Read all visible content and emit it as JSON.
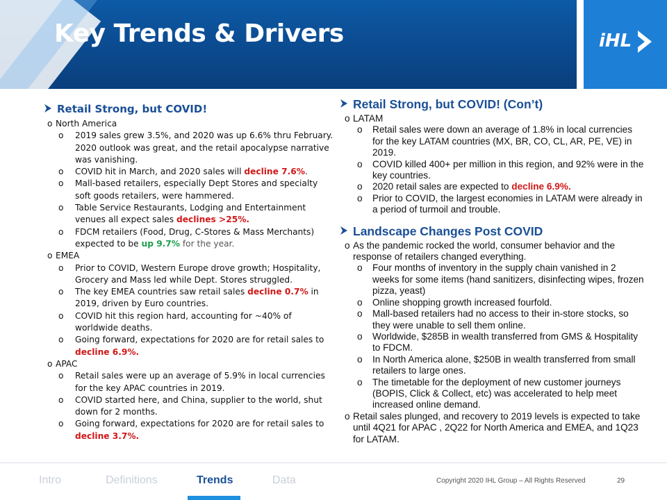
{
  "header": {
    "title": "Key Trends & Drivers",
    "logo_text": "iHL",
    "bg_color": "#0b4a8f",
    "logo_color": "#1e7fd6"
  },
  "left": {
    "heading": "Retail Strong, but COVID!",
    "sections": [
      {
        "region": "North America",
        "items": [
          [
            {
              "t": "2019 sales grew 3.5%, and 2020 was up 6.6% thru February. 2020 outlook was great, and the retail apocalypse narrative was vanishing."
            }
          ],
          [
            {
              "t": "COVID hit in March, and 2020 sales will "
            },
            {
              "t": "decline 7.6%",
              "s": "red"
            },
            {
              "t": "."
            }
          ],
          [
            {
              "t": "Mall-based retailers, especially Dept Stores and specialty soft goods retailers, were hammered."
            }
          ],
          [
            {
              "t": "Table Service Restaurants, Lodging and Entertainment venues all expect sales "
            },
            {
              "t": "declines >25%.",
              "s": "red"
            }
          ],
          [
            {
              "t": "FDCM retailers (Food, Drug, C-Stores & Mass Merchants) expected to be "
            },
            {
              "t": "up 9.7%",
              "s": "green"
            },
            {
              "t": " for the year.",
              "s": "grey"
            }
          ]
        ]
      },
      {
        "region": "EMEA",
        "items": [
          [
            {
              "t": "Prior to COVID, Western Europe drove growth; Hospitality, Grocery and Mass led while Dept. Stores struggled."
            }
          ],
          [
            {
              "t": "The key EMEA countries saw retail sales "
            },
            {
              "t": "decline 0.7%",
              "s": "red"
            },
            {
              "t": " in 2019, driven by Euro countries."
            }
          ],
          [
            {
              "t": "COVID hit this region hard, accounting for ~40% of worldwide deaths."
            }
          ],
          [
            {
              "t": "Going forward, expectations for 2020 are for retail sales to "
            },
            {
              "t": "decline 6.9%.",
              "s": "red"
            }
          ]
        ]
      },
      {
        "region": "APAC",
        "items": [
          [
            {
              "t": "Retail sales were up an average of 5.9% in local currencies for the key APAC countries in 2019."
            }
          ],
          [
            {
              "t": "COVID started here, and China, supplier to the world,  shut down for 2 months."
            }
          ],
          [
            {
              "t": "Going forward, expectations for 2020 are for retail sales to "
            },
            {
              "t": "decline 3.7%.",
              "s": "red"
            }
          ]
        ]
      }
    ]
  },
  "right": {
    "heading1": "Retail Strong, but COVID!  (Con’t)",
    "latam": {
      "region": "LATAM",
      "items": [
        [
          {
            "t": "Retail sales were down an average of 1.8% in local currencies  for the key LATAM countries (MX, BR, CO, CL, AR, PE, VE) in 2019."
          }
        ],
        [
          {
            "t": "COVID killed 400+ per million in this region, and 92% were in the key countries."
          }
        ],
        [
          {
            "t": "2020 retail sales are expected to "
          },
          {
            "t": "decline 6.9%.",
            "s": "red"
          }
        ],
        [
          {
            "t": "Prior to COVID, the largest economies in LATAM  were already in a period of turmoil and trouble."
          }
        ]
      ]
    },
    "heading2": "Landscape Changes Post COVID",
    "pandemic": {
      "intro": "As the pandemic rocked the world, consumer behavior and the response of retailers changed everything.",
      "items": [
        [
          {
            "t": "Four months of inventory in the supply chain vanished in 2 weeks for some items (hand sanitizers, disinfecting wipes, frozen pizza, yeast)"
          }
        ],
        [
          {
            "t": "Online shopping growth increased fourfold."
          }
        ],
        [
          {
            "t": "Mall-based retailers had no access to their in-store stocks, so they were unable to sell them online."
          }
        ],
        [
          {
            "t": "Worldwide, $285B in wealth transferred from GMS & Hospitality to FDCM."
          }
        ],
        [
          {
            "t": "In North America alone, $250B in wealth transferred from small retailers to large ones."
          }
        ],
        [
          {
            "t": "The timetable for the deployment of new customer journeys (BOPIS, Click & Collect, etc) was accelerated to help meet increased online demand."
          }
        ]
      ],
      "closing": "Retail sales plunged, and recovery to 2019 levels is expected to take until 4Q21 for APAC , 2Q22 for North America and EMEA, and 1Q23 for LATAM."
    }
  },
  "footer": {
    "tabs": [
      "Intro",
      "Definitions",
      "Trends",
      "Data"
    ],
    "active_tab": "Trends",
    "copyright": "Copyright 2020 IHL Group – All Rights Reserved",
    "page_number": "29"
  },
  "colors": {
    "heading": "#1a4f96",
    "red": "#d01818",
    "green": "#1aa14b",
    "accent": "#1e90e0"
  },
  "icons": [
    "arrow-bullet-icon",
    "ihl-logo-arrow-icon"
  ]
}
